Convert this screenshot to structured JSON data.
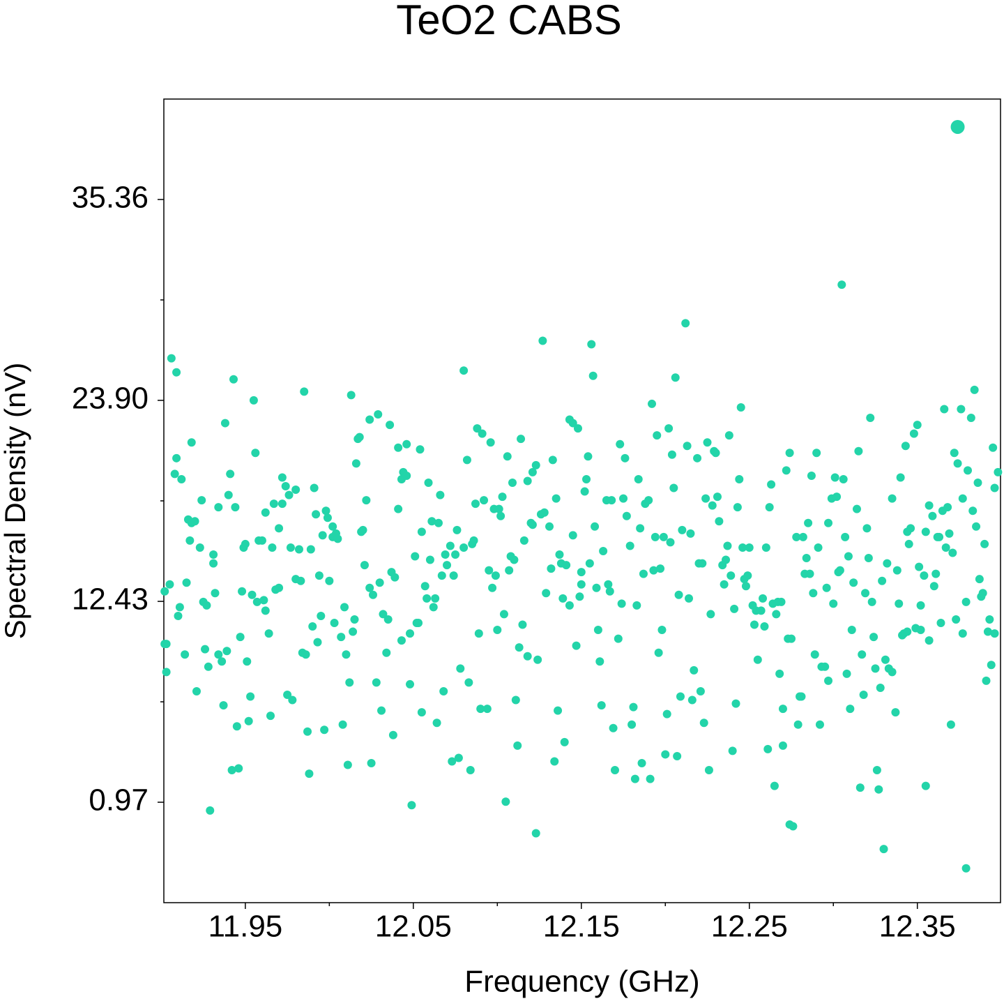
{
  "chart_data": {
    "type": "scatter",
    "title": "TeO2 CABS",
    "x_label": "Frequency (GHz)",
    "y_label": "Spectral Density (nV)",
    "xlim": [
      11.9015,
      12.3995
    ],
    "ylim": [
      -4.76,
      41.09
    ],
    "xticks": [
      11.95,
      12.05,
      12.15,
      12.25,
      12.35
    ],
    "yticks": [
      0.97,
      12.43,
      {
        "value": 23.9,
        "label": "23.90"
      },
      35.36
    ],
    "xminorticks": [
      12.0,
      12.1,
      12.2,
      12.3
    ],
    "yminorticks": [
      6.7,
      18.165,
      29.63
    ],
    "series": [
      {
        "color": "#23d4a9",
        "size": 6,
        "x": [
          11.902,
          11.903,
          11.902,
          11.903,
          11.905,
          11.906,
          11.908,
          11.909,
          11.909,
          11.91,
          11.911,
          11.912,
          11.914,
          11.915,
          11.916,
          11.917,
          11.918,
          11.918,
          11.92,
          11.921,
          11.923,
          11.924,
          11.925,
          11.926,
          11.927,
          11.928,
          11.929,
          11.931,
          11.931,
          11.932,
          11.934,
          11.934,
          11.936,
          11.937,
          11.938,
          11.939,
          11.94,
          11.941,
          11.942,
          11.943,
          11.944,
          11.945,
          11.946,
          11.947,
          11.948,
          11.949,
          11.95,
          11.951,
          11.952,
          11.953,
          11.954,
          11.955,
          11.956,
          11.957,
          11.958,
          11.96,
          11.961,
          11.962,
          11.962,
          11.964,
          11.965,
          11.966,
          11.967,
          11.968,
          11.97,
          11.97,
          11.972,
          11.972,
          11.974,
          11.975,
          11.976,
          11.977,
          11.978,
          11.98,
          11.98,
          11.982,
          11.983,
          11.984,
          11.985,
          11.986,
          11.987,
          11.988,
          11.989,
          11.99,
          11.991,
          11.992,
          11.993,
          11.994,
          11.995,
          11.996,
          11.997,
          11.998,
          11.999,
          12.0,
          12.002,
          12.002,
          12.003,
          12.004,
          12.005,
          12.007,
          12.008,
          12.009,
          12.01,
          12.011,
          12.012,
          12.013,
          12.014,
          12.015,
          12.016,
          12.017,
          12.018,
          12.019,
          12.02,
          12.021,
          12.022,
          12.024,
          12.024,
          12.025,
          12.026,
          12.028,
          12.029,
          12.03,
          12.031,
          12.032,
          12.034,
          12.035,
          12.036,
          12.037,
          12.038,
          12.039,
          12.041,
          12.041,
          12.043,
          12.043,
          12.044,
          12.046,
          12.046,
          12.048,
          12.048,
          12.049,
          12.051,
          12.052,
          12.053,
          12.054,
          12.055,
          12.055,
          12.057,
          12.058,
          12.059,
          12.06,
          12.061,
          12.062,
          12.063,
          12.064,
          12.065,
          12.066,
          12.067,
          12.068,
          12.069,
          12.07,
          12.072,
          12.073,
          12.074,
          12.075,
          12.076,
          12.077,
          12.078,
          12.08,
          12.08,
          12.082,
          12.083,
          12.084,
          12.085,
          12.086,
          12.087,
          12.088,
          12.089,
          12.09,
          12.091,
          12.092,
          12.094,
          12.095,
          12.096,
          12.097,
          12.098,
          12.099,
          12.1,
          12.101,
          12.102,
          12.103,
          12.104,
          12.105,
          12.106,
          12.107,
          12.108,
          12.109,
          12.11,
          12.111,
          12.112,
          12.113,
          12.114,
          12.115,
          12.116,
          12.118,
          12.118,
          12.12,
          12.121,
          12.121,
          12.123,
          12.123,
          12.124,
          12.126,
          12.127,
          12.128,
          12.129,
          12.131,
          12.132,
          12.133,
          12.134,
          12.135,
          12.136,
          12.137,
          12.138,
          12.139,
          12.14,
          12.141,
          12.143,
          12.143,
          12.145,
          12.145,
          12.147,
          12.148,
          12.149,
          12.15,
          12.15,
          12.152,
          12.153,
          12.154,
          12.155,
          12.156,
          12.157,
          12.158,
          12.159,
          12.16,
          12.161,
          12.162,
          12.163,
          12.165,
          12.166,
          12.167,
          12.168,
          12.169,
          12.17,
          12.172,
          12.173,
          12.174,
          12.175,
          12.176,
          12.177,
          12.179,
          12.18,
          12.181,
          12.182,
          12.183,
          12.184,
          12.185,
          12.186,
          12.187,
          12.188,
          12.19,
          12.191,
          12.192,
          12.193,
          12.194,
          12.195,
          12.196,
          12.197,
          12.198,
          12.199,
          12.2,
          12.201,
          12.202,
          12.203,
          12.204,
          12.205,
          12.206,
          12.207,
          12.208,
          12.209,
          12.21,
          12.212,
          12.213,
          12.214,
          12.215,
          12.216,
          12.217,
          12.219,
          12.22,
          12.221,
          12.222,
          12.223,
          12.224,
          12.225,
          12.226,
          12.227,
          12.228,
          12.229,
          12.23,
          12.231,
          12.232,
          12.234,
          12.235,
          12.236,
          12.237,
          12.238,
          12.239,
          12.24,
          12.241,
          12.242,
          12.243,
          12.244,
          12.245,
          12.246,
          12.247,
          12.248,
          12.249,
          12.25,
          12.252,
          12.253,
          12.254,
          12.255,
          12.257,
          12.258,
          12.259,
          12.26,
          12.261,
          12.262,
          12.263,
          12.264,
          12.265,
          12.266,
          12.267,
          12.268,
          12.269,
          12.27,
          12.27,
          12.272,
          12.273,
          12.274,
          12.274,
          12.275,
          12.276,
          12.278,
          12.279,
          12.28,
          12.281,
          12.282,
          12.283,
          12.284,
          12.285,
          12.286,
          12.287,
          12.288,
          12.289,
          12.29,
          12.291,
          12.292,
          12.293,
          12.295,
          12.296,
          12.297,
          12.297,
          12.299,
          12.3,
          12.301,
          12.302,
          12.303,
          12.304,
          12.305,
          12.306,
          12.307,
          12.308,
          12.309,
          12.31,
          12.311,
          12.312,
          12.314,
          12.315,
          12.316,
          12.317,
          12.318,
          12.319,
          12.32,
          12.321,
          12.322,
          12.323,
          12.324,
          12.325,
          12.326,
          12.327,
          12.328,
          12.329,
          12.33,
          12.331,
          12.332,
          12.333,
          12.335,
          12.335,
          12.337,
          12.338,
          12.339,
          12.34,
          12.341,
          12.342,
          12.343,
          12.344,
          12.344,
          12.345,
          12.346,
          12.348,
          12.349,
          12.35,
          12.351,
          12.352,
          12.352,
          12.354,
          12.355,
          12.355,
          12.357,
          12.357,
          12.359,
          12.36,
          12.361,
          12.362,
          12.363,
          12.364,
          12.365,
          12.366,
          12.367,
          12.368,
          12.369,
          12.37,
          12.371,
          12.372,
          12.373,
          12.374,
          12.376,
          12.377,
          12.377,
          12.379,
          12.379,
          12.38,
          12.382,
          12.383,
          12.384,
          12.385,
          12.386,
          12.387,
          12.388,
          12.389,
          12.39,
          12.391,
          12.392,
          12.393,
          12.394,
          12.395,
          12.396,
          12.396,
          12.398
        ],
        "y": [
          10.0,
          10.0,
          13.0,
          8.4,
          13.4,
          26.3,
          19.7,
          20.6,
          25.5,
          11.6,
          12.1,
          19.4,
          9.4,
          13.5,
          17.1,
          15.9,
          21.5,
          16.9,
          17.0,
          7.3,
          15.5,
          18.2,
          12.4,
          9.7,
          12.2,
          8.7,
          0.5,
          15.1,
          14.6,
          12.9,
          17.8,
          9.4,
          9.0,
          6.5,
          22.6,
          9.6,
          18.5,
          19.7,
          2.8,
          25.1,
          17.8,
          5.3,
          2.9,
          10.4,
          13.0,
          15.5,
          15.7,
          9.0,
          5.6,
          7.0,
          12.8,
          23.9,
          20.9,
          12.4,
          15.9,
          15.9,
          12.5,
          11.9,
          17.5,
          10.6,
          5.9,
          15.5,
          18.0,
          13.1,
          16.6,
          13.2,
          19.5,
          18.0,
          19.0,
          7.1,
          18.5,
          15.5,
          6.8,
          13.7,
          18.8,
          15.4,
          13.6,
          9.5,
          24.4,
          9.4,
          5.0,
          2.6,
          15.4,
          11.0,
          18.9,
          17.4,
          10.1,
          13.9,
          11.6,
          16.2,
          5.1,
          17.6,
          17.2,
          13.6,
          16.1,
          16.7,
          11.2,
          16.3,
          16.0,
          10.4,
          5.4,
          12.1,
          9.4,
          3.1,
          7.8,
          24.2,
          10.7,
          11.4,
          20.3,
          21.7,
          21.8,
          16.4,
          16.5,
          14.5,
          18.2,
          22.8,
          13.2,
          3.2,
          12.8,
          7.8,
          23.1,
          13.5,
          6.2,
          11.7,
          9.5,
          11.4,
          22.5,
          14.1,
          4.8,
          13.8,
          21.2,
          17.7,
          10.2,
          19.4,
          19.8,
          21.4,
          19.6,
          7.7,
          10.6,
          0.8,
          15.0,
          11.2,
          11.2,
          21.1,
          16.4,
          6.1,
          13.3,
          12.6,
          19.2,
          14.8,
          17.0,
          12.1,
          12.6,
          5.5,
          16.9,
          18.5,
          13.9,
          7.3,
          15.1,
          14.5,
          15.6,
          3.3,
          13.9,
          15.1,
          16.5,
          3.5,
          8.6,
          15.5,
          25.6,
          20.5,
          7.8,
          2.8,
          15.7,
          15.9,
          18.0,
          22.3,
          10.6,
          6.3,
          22.0,
          18.2,
          6.3,
          14.2,
          21.5,
          13.2,
          17.7,
          13.9,
          10.8,
          17.7,
          17.3,
          18.4,
          11.7,
          1.0,
          20.7,
          14.2,
          15.0,
          19.2,
          14.8,
          6.8,
          4.2,
          9.8,
          21.7,
          11.1,
          15.9,
          9.3,
          19.3,
          16.9,
          19.8,
          16.8,
          -0.8,
          20.2,
          9.1,
          17.4,
          27.3,
          17.5,
          12.9,
          16.7,
          14.3,
          20.5,
          3.3,
          18.3,
          6.2,
          15.1,
          14.6,
          12.6,
          4.4,
          14.5,
          12.2,
          22.8,
          22.6,
          16.2,
          9.9,
          22.3,
          12.7,
          13.4,
          14.1,
          18.7,
          19.4,
          20.7,
          14.6,
          27.1,
          25.3,
          16.7,
          13.2,
          10.8,
          9.0,
          6.5,
          15.3,
          18.2,
          13.4,
          13.0,
          18.2,
          5.2,
          2.8,
          10.3,
          21.4,
          12.3,
          18.3,
          20.6,
          17.3,
          15.6,
          5.4,
          6.4,
          2.3,
          12.2,
          19.4,
          16.6,
          3.2,
          14.0,
          18.0,
          18.2,
          2.3,
          23.7,
          14.2,
          16.1,
          21.9,
          9.5,
          14.3,
          10.8,
          16.1,
          3.7,
          6.0,
          22.3,
          15.8,
          20.8,
          18.9,
          25.2,
          3.6,
          12.8,
          7.0,
          16.5,
          28.3,
          21.3,
          12.6,
          16.3,
          6.8,
          8.5,
          20.6,
          14.6,
          7.3,
          14.6,
          5.5,
          18.3,
          21.5,
          2.8,
          11.7,
          17.9,
          21.0,
          20.9,
          18.4,
          17.0,
          14.5,
          13.4,
          14.8,
          15.6,
          21.9,
          13.9,
          3.9,
          12.0,
          6.6,
          17.8,
          19.4,
          23.5,
          15.5,
          13.7,
          13.3,
          13.9,
          15.5,
          12.2,
          11.1,
          11.9,
          9.1,
          11.9,
          12.6,
          11.0,
          15.5,
          4.0,
          17.8,
          19.1,
          12.3,
          1.9,
          11.7,
          12.4,
          8.3,
          12.4,
          4.2,
          6.3,
          19.9,
          10.3,
          20.9,
          -0.3,
          10.3,
          -0.4,
          16.1,
          5.4,
          7.0,
          7.0,
          16.1,
          14.0,
          14.9,
          16.9,
          14.0,
          19.6,
          12.9,
          9.4,
          20.9,
          15.5,
          5.4,
          8.7,
          8.7,
          13.2,
          16.9,
          7.9,
          18.3,
          12.3,
          19.5,
          18.4,
          14.1,
          14.2,
          30.5,
          19.4,
          16.1,
          8.3,
          15.0,
          6.3,
          10.8,
          13.5,
          17.7,
          21.0,
          1.8,
          9.4,
          7.1,
          12.9,
          16.6,
          14.9,
          22.9,
          12.4,
          10.4,
          8.6,
          2.8,
          1.7,
          7.5,
          13.6,
          -1.7,
          9.1,
          14.6,
          8.6,
          18.3,
          8.4,
          6.1,
          14.2,
          12.3,
          19.5,
          10.5,
          10.6,
          21.3,
          10.7,
          16.4,
          15.7,
          16.6,
          22.0,
          10.9,
          22.5,
          14.4,
          12.2,
          10.8,
          13.9,
          16.4,
          1.9,
          10.2,
          17.9,
          17.3,
          13.3,
          14.0,
          16.1,
          16.1,
          11.2,
          17.6,
          23.4,
          15.5,
          17.8,
          16.3,
          5.4,
          15.2,
          20.9,
          11.4,
          20.3,
          23.4,
          18.3,
          10.6,
          12.4,
          -2.8,
          19.9,
          22.9,
          17.6,
          24.5,
          16.7,
          19.2,
          13.7,
          12.7,
          12.9,
          15.7,
          7.9,
          10.7,
          11.4,
          8.8,
          21.2,
          10.6,
          18.9,
          19.8
        ]
      },
      {
        "color": "#23d4a9",
        "size": 10,
        "x": [
          12.374
        ],
        "y": [
          39.5
        ]
      }
    ]
  }
}
